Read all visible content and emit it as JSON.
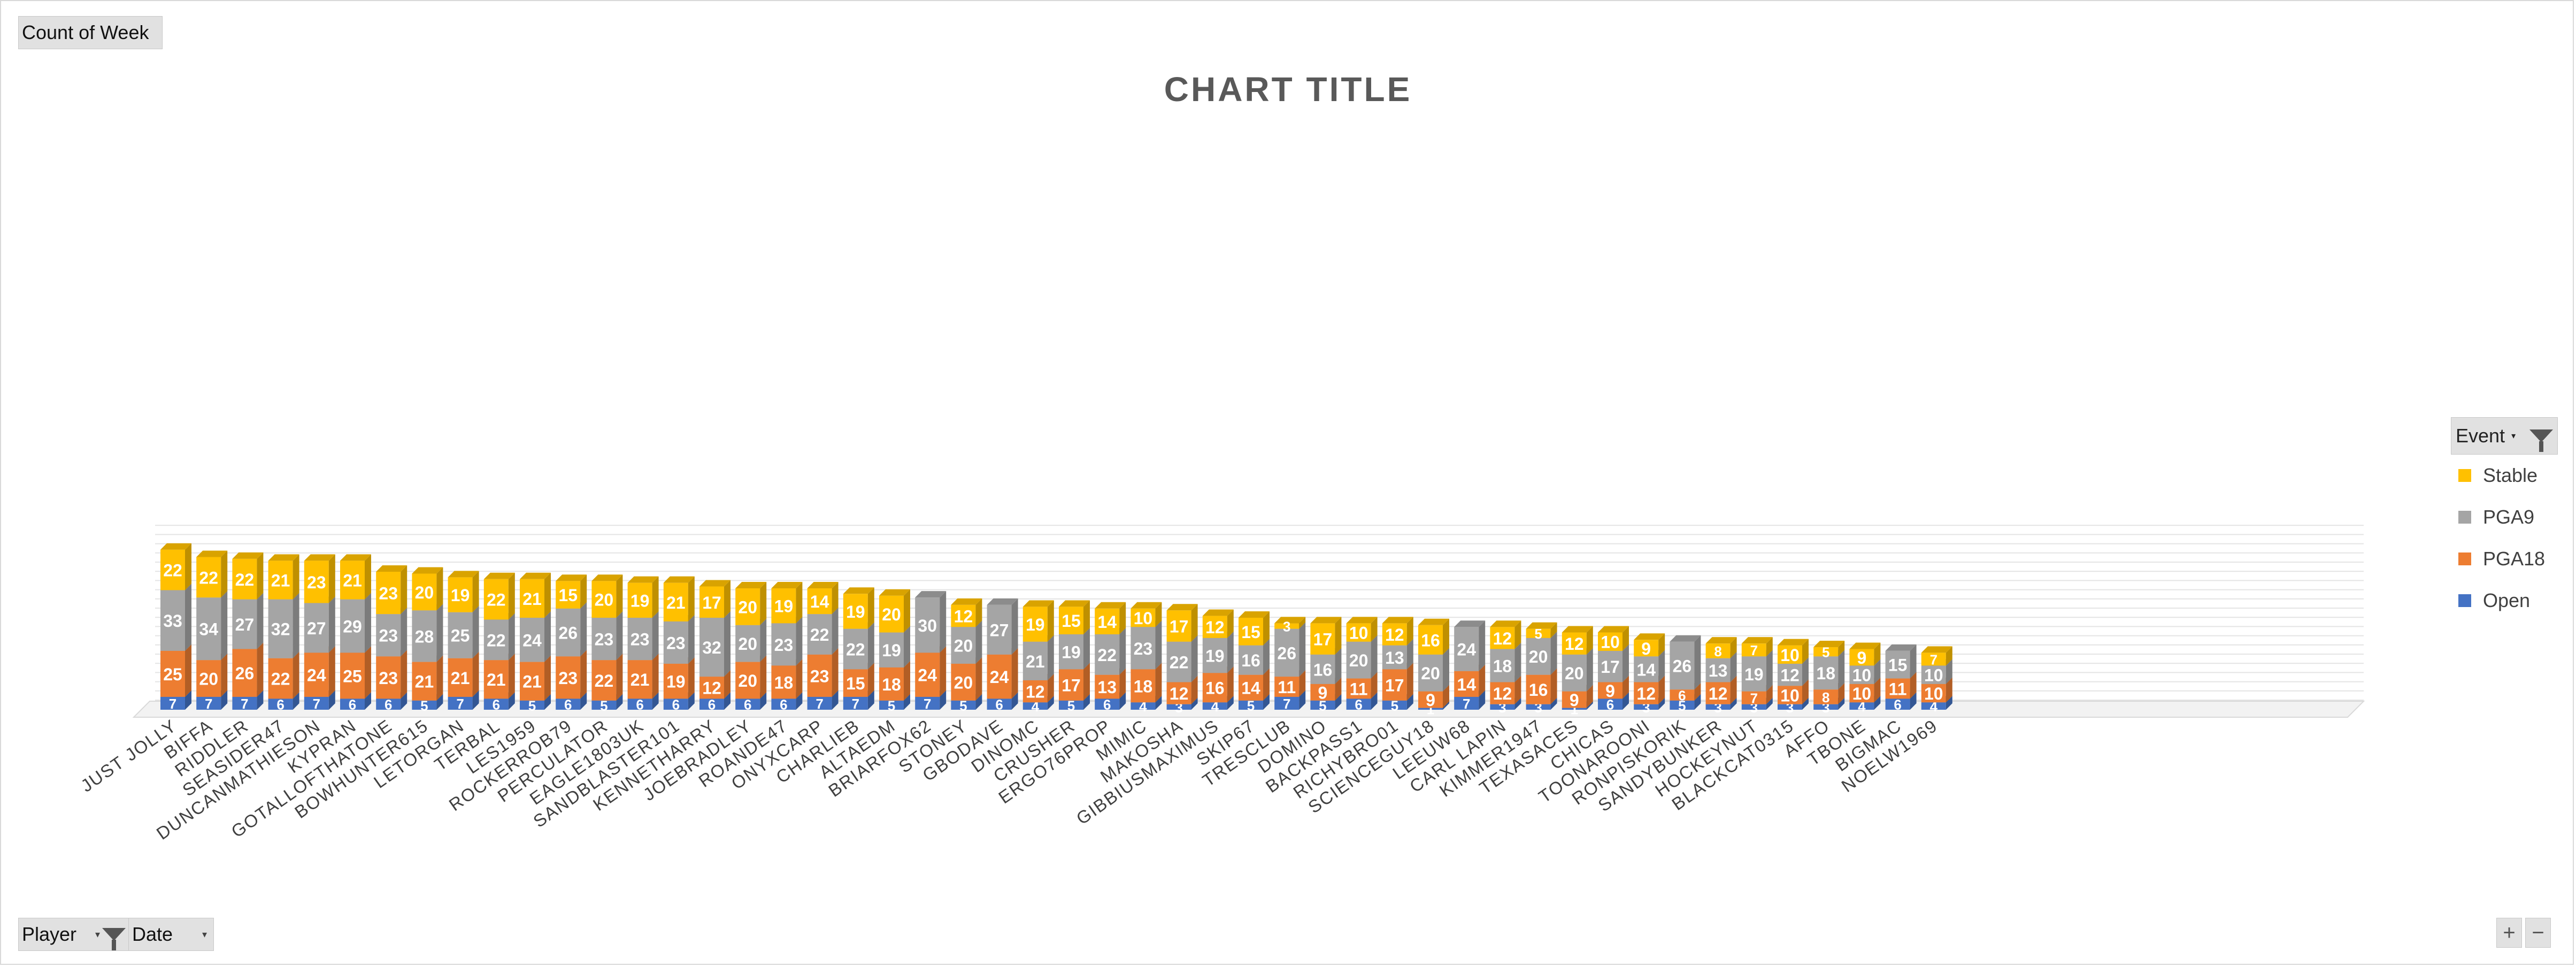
{
  "top_button": {
    "label": "Count of Week"
  },
  "bottom_buttons": {
    "player": "Player",
    "date": "Date"
  },
  "zoom": {
    "plus": "+",
    "minus": "−"
  },
  "legend": {
    "title": "Event",
    "items": [
      {
        "label": "Stable",
        "color": "#ffc000"
      },
      {
        "label": "PGA9",
        "color": "#a5a5a5"
      },
      {
        "label": "PGA18",
        "color": "#ed7d31"
      },
      {
        "label": "Open",
        "color": "#4472c4"
      }
    ]
  },
  "chart_data": {
    "type": "bar",
    "stacked": true,
    "style": "3d-column",
    "title": "CHART TITLE",
    "categories": [
      "JUST JOLLY",
      "BIFFA",
      "RIDDLER",
      "SEASIDER47",
      "DUNCANMATHIESON",
      "KYPRAN",
      "GOTALLOFTHATONE",
      "BOWHUNTER615",
      "LETORGAN",
      "TERBAL",
      "LES1959",
      "ROCKERROB79",
      "PERCULATOR",
      "EAGLE1803UK",
      "SANDBLASTER101",
      "KENNETHARRY",
      "JOEBRADLEY",
      "ROANDE47",
      "ONYXCARP",
      "CHARLIEB",
      "ALTAEDM",
      "BRIARFOX62",
      "STONEY",
      "GBODAVE",
      "DINOMC",
      "CRUSHER",
      "ERGO76PROP",
      "MIMIC",
      "MAKOSHA",
      "GIBBIUSMAXIMUS",
      "SKIP67",
      "TRESCLUB",
      "DOMINO",
      "BACKPASS1",
      "RICHYBRO01",
      "SCIENCEGUY18",
      "LEEUW68",
      "CARL LAPIN",
      "KIMMER1947",
      "TEXASACES",
      "CHICAS",
      "TOONAROONI",
      "RONPISKORIK",
      "SANDYBUNKER",
      "HOCKEYNUT",
      "BLACKCAT0315",
      "AFFO",
      "TBONE",
      "BIGMAC",
      "NOELW1969"
    ],
    "series": [
      {
        "name": "Open",
        "color": "#4472c4",
        "values": [
          7,
          7,
          7,
          6,
          7,
          6,
          6,
          5,
          7,
          6,
          5,
          6,
          5,
          6,
          6,
          6,
          6,
          6,
          7,
          7,
          5,
          7,
          5,
          6,
          4,
          5,
          6,
          4,
          3,
          4,
          5,
          7,
          5,
          6,
          5,
          1,
          7,
          3,
          3,
          1,
          6,
          3,
          5,
          3,
          3,
          3,
          3,
          4,
          6,
          4
        ]
      },
      {
        "name": "PGA18",
        "color": "#ed7d31",
        "values": [
          25,
          20,
          26,
          22,
          24,
          25,
          23,
          21,
          21,
          21,
          21,
          23,
          22,
          21,
          19,
          12,
          20,
          18,
          23,
          15,
          18,
          24,
          20,
          24,
          12,
          17,
          13,
          18,
          12,
          16,
          14,
          11,
          9,
          11,
          17,
          9,
          14,
          12,
          16,
          9,
          9,
          12,
          6,
          12,
          7,
          10,
          8,
          10,
          11,
          10
        ]
      },
      {
        "name": "PGA9",
        "color": "#a5a5a5",
        "values": [
          33,
          34,
          27,
          32,
          27,
          29,
          23,
          28,
          25,
          22,
          24,
          26,
          23,
          23,
          23,
          32,
          20,
          23,
          22,
          22,
          19,
          30,
          20,
          27,
          21,
          19,
          22,
          23,
          22,
          19,
          16,
          26,
          16,
          20,
          13,
          20,
          24,
          18,
          20,
          20,
          17,
          14,
          26,
          13,
          19,
          12,
          18,
          10,
          15,
          10
        ]
      },
      {
        "name": "Stable",
        "color": "#ffc000",
        "values": [
          22,
          22,
          22,
          21,
          23,
          21,
          23,
          20,
          19,
          22,
          21,
          15,
          20,
          19,
          21,
          17,
          20,
          19,
          14,
          19,
          20,
          null,
          12,
          null,
          19,
          15,
          14,
          10,
          17,
          12,
          15,
          3,
          17,
          10,
          12,
          16,
          null,
          12,
          5,
          12,
          10,
          9,
          null,
          8,
          7,
          10,
          5,
          9,
          null,
          7
        ]
      }
    ]
  }
}
